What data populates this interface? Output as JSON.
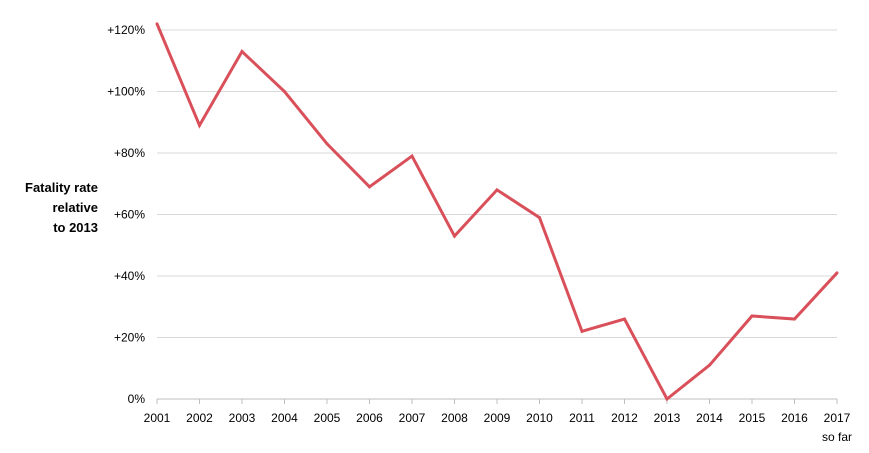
{
  "chart_data": {
    "type": "line",
    "ylabel_lines": [
      "Fatality rate",
      "relative",
      "to 2013"
    ],
    "categories": [
      "2001",
      "2002",
      "2003",
      "2004",
      "2005",
      "2006",
      "2007",
      "2008",
      "2009",
      "2010",
      "2011",
      "2012",
      "2013",
      "2014",
      "2015",
      "2016",
      "2017"
    ],
    "category_sublabels": [
      "",
      "",
      "",
      "",
      "",
      "",
      "",
      "",
      "",
      "",
      "",
      "",
      "",
      "",
      "",
      "",
      "so far"
    ],
    "series": [
      {
        "values": [
          122,
          89,
          113,
          100,
          83,
          69,
          79,
          53,
          68,
          59,
          22,
          26,
          0,
          11,
          27,
          26,
          41
        ]
      }
    ],
    "y_ticks": [
      0,
      20,
      40,
      60,
      80,
      100,
      120
    ],
    "y_tick_labels": [
      "0%",
      "+20%",
      "+40%",
      "+60%",
      "+80%",
      "+100%",
      "+120%"
    ],
    "ylim": [
      0,
      120
    ],
    "grid": true,
    "colors": {
      "line": "#d9505a",
      "grid": "#d9d9d9",
      "axis": "#bfbfbf"
    }
  }
}
